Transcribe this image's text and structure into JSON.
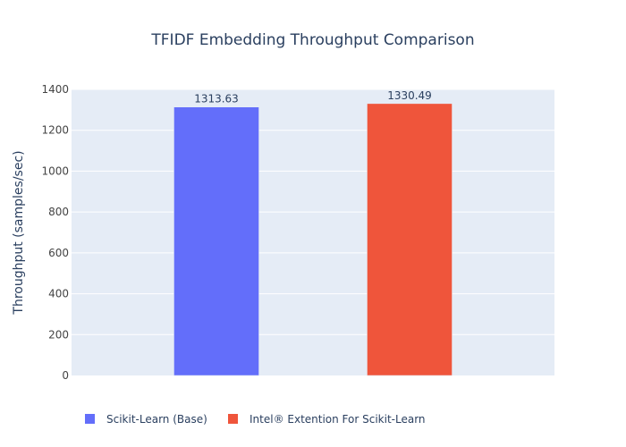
{
  "chart_data": {
    "type": "bar",
    "title": "TFIDF Embedding Throughput Comparison",
    "xlabel": "",
    "ylabel": "Throughput (samples/sec)",
    "ylim": [
      0,
      1400
    ],
    "yticks": [
      0,
      200,
      400,
      600,
      800,
      1000,
      1200,
      1400
    ],
    "grid": true,
    "legend_position": "bottom-left",
    "legend_orientation": "horizontal",
    "series": [
      {
        "name": "Scikit-Learn (Base)",
        "value": 1313.63,
        "label": "1313.63",
        "color": "#636efa"
      },
      {
        "name": "Intel® Extention For Scikit-Learn",
        "value": 1330.49,
        "label": "1330.49",
        "color": "#ef553b"
      }
    ],
    "colors": {
      "plot_bg": "#e5ecf6",
      "grid": "#ffffff",
      "text": "#2a3f5f",
      "tick_text": "#444444"
    }
  }
}
